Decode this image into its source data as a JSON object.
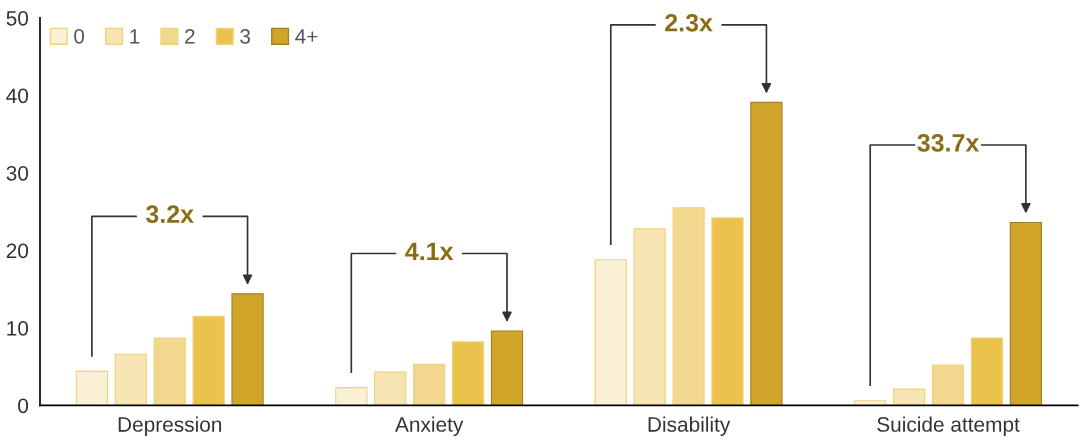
{
  "chart_data": {
    "type": "bar",
    "categories": [
      "Depression",
      "Anxiety",
      "Disability",
      "Suicide attempt"
    ],
    "series": [
      {
        "name": "0",
        "color": "#faf0d6",
        "values": [
          4.4,
          2.3,
          18.8,
          0.6
        ]
      },
      {
        "name": "1",
        "color": "#f6e4b2",
        "values": [
          6.6,
          4.3,
          22.8,
          2.1
        ]
      },
      {
        "name": "2",
        "color": "#f2d88e",
        "values": [
          8.7,
          5.3,
          25.5,
          5.2
        ]
      },
      {
        "name": "3",
        "color": "#ebc24c",
        "values": [
          11.5,
          8.2,
          24.2,
          8.7
        ]
      },
      {
        "name": "4+",
        "color": "#d0a52a",
        "values": [
          14.4,
          9.6,
          39.1,
          23.6
        ]
      }
    ],
    "ylim": [
      0,
      50
    ],
    "yticks": [
      0,
      10,
      20,
      30,
      40,
      50
    ],
    "grid": false,
    "legend": "top left",
    "annotations": [
      "3.2x",
      "4.1x",
      "2.3x",
      "33.7x"
    ]
  }
}
